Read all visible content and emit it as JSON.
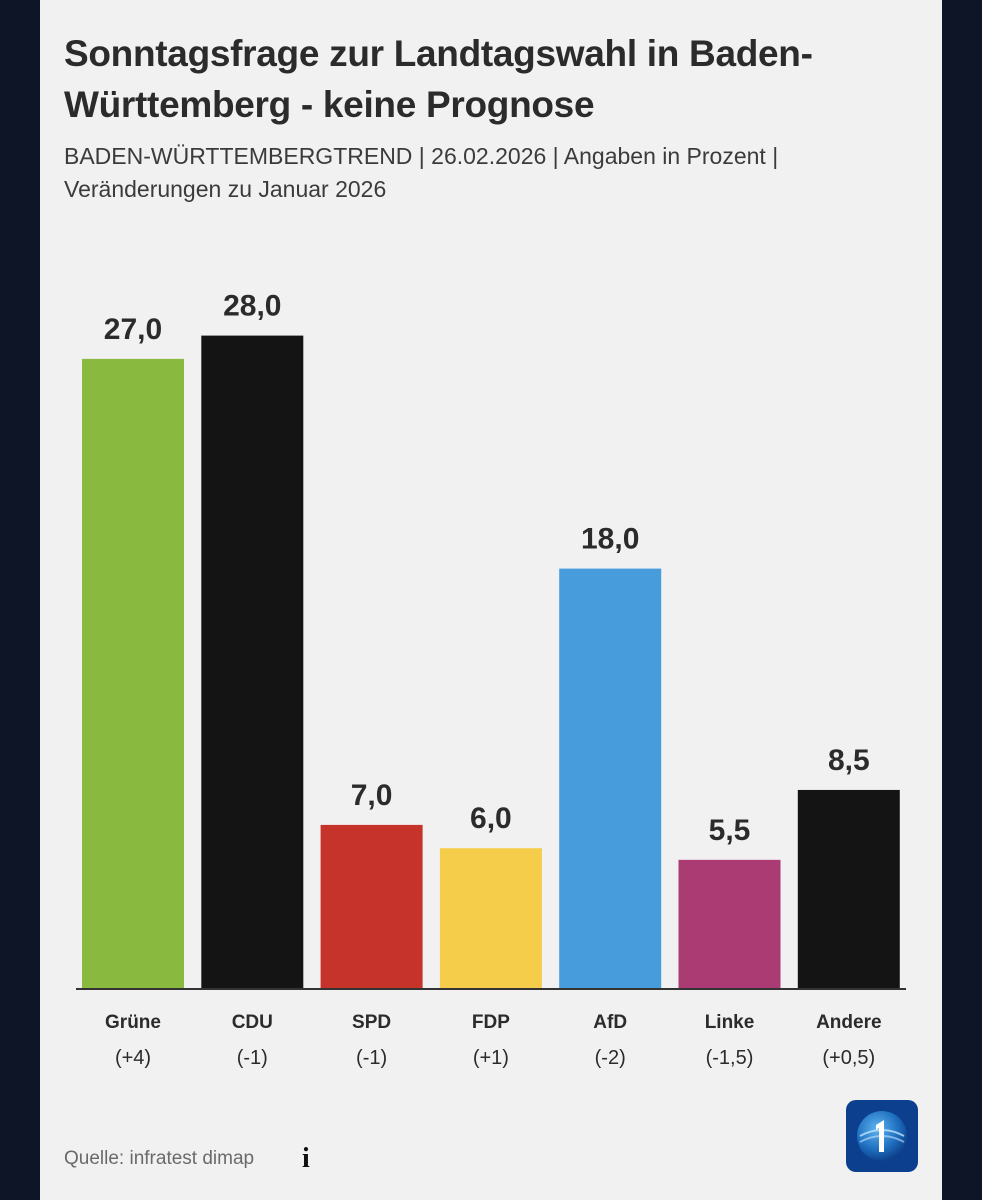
{
  "header": {
    "title": "Sonntagsfrage zur Landtagswahl in Baden-Württemberg - keine Prognose",
    "subtitle": "BADEN-WÜRTTEMBERGTREND | 26.02.2026 | Angaben in Prozent | Veränderungen zu Januar 2026"
  },
  "footer": {
    "source": "Quelle: infratest dimap",
    "info_icon": "info-icon",
    "logo": "ard-tagesschau-logo"
  },
  "chart_data": {
    "type": "bar",
    "title": "Sonntagsfrage zur Landtagswahl in Baden-Württemberg - keine Prognose",
    "xlabel": "",
    "ylabel": "",
    "ylim": [
      0,
      30
    ],
    "grid": false,
    "categories": [
      "Grüne",
      "CDU",
      "SPD",
      "FDP",
      "AfD",
      "Linke",
      "Andere"
    ],
    "values": [
      27.0,
      28.0,
      7.0,
      6.0,
      18.0,
      5.5,
      8.5
    ],
    "value_labels": [
      "27,0",
      "28,0",
      "7,0",
      "6,0",
      "18,0",
      "5,5",
      "8,5"
    ],
    "changes": [
      "(+4)",
      "(-1)",
      "(-1)",
      "(+1)",
      "(-2)",
      "(-1,5)",
      "(+0,5)"
    ],
    "colors": [
      "#8ab93f",
      "#141414",
      "#c5332b",
      "#f6cd4a",
      "#479ddb",
      "#ab3b73",
      "#141414"
    ]
  }
}
